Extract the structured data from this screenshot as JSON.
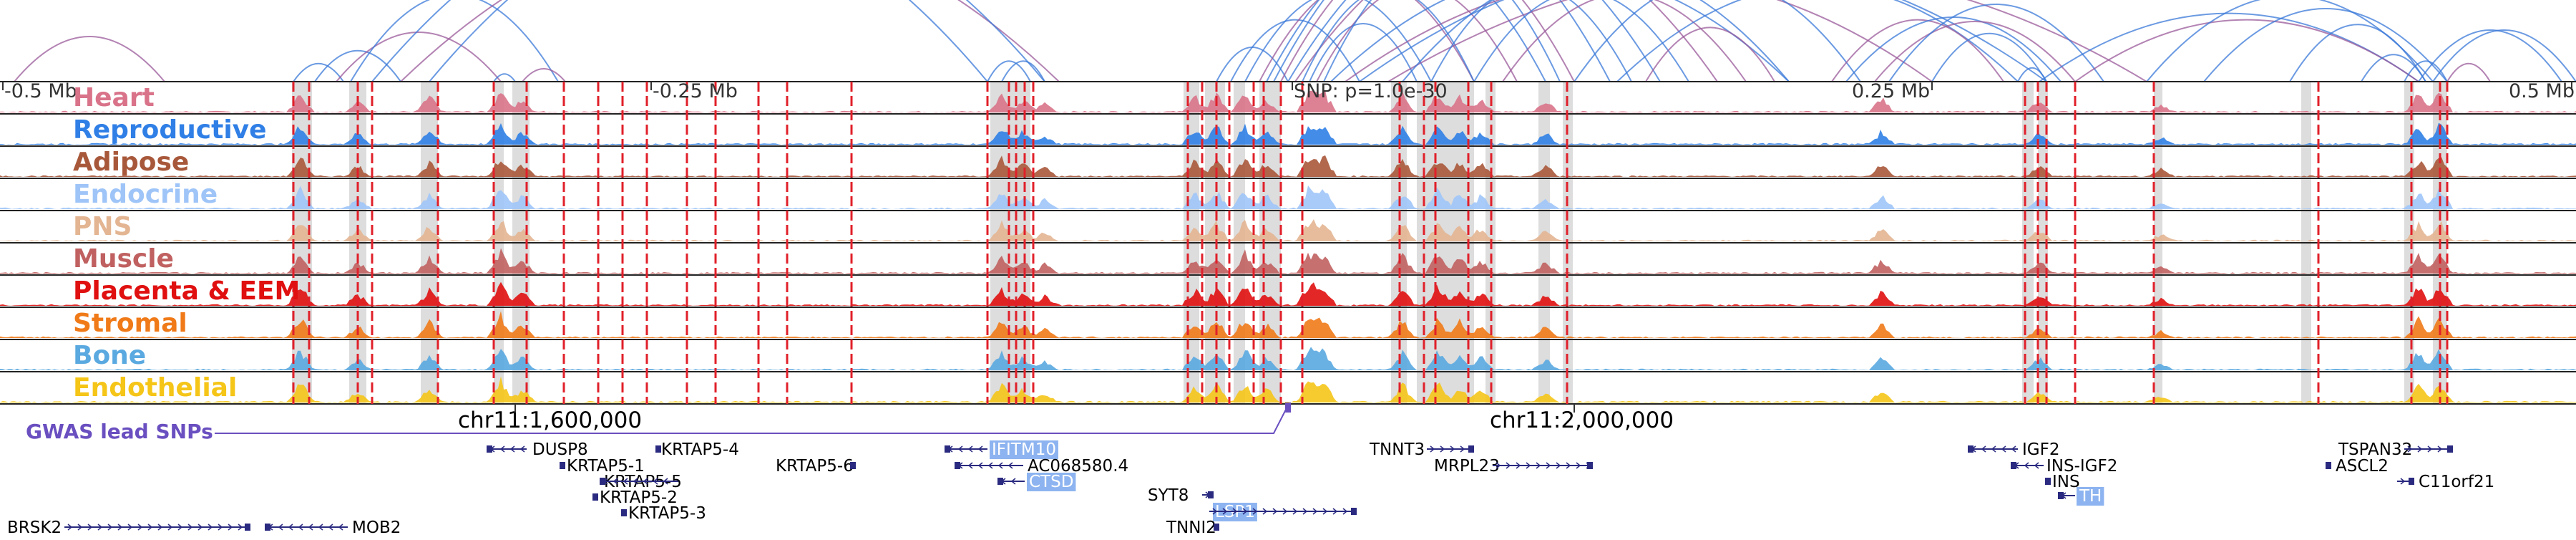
{
  "axis": {
    "left_label": "-0.5 Mb",
    "mid_left_label": "-0.25 Mb",
    "snp_label": "SNP: p=1.0e-30",
    "mid_right_label": "0.25 Mb",
    "right_label": "0.5 Mb",
    "coord_left": "chr11:1,600,000",
    "coord_right": "chr11:2,000,000"
  },
  "tracks": [
    {
      "name": "Heart",
      "color": "#d9738a"
    },
    {
      "name": "Reproductive",
      "color": "#2f7fe6"
    },
    {
      "name": "Adipose",
      "color": "#a8583a"
    },
    {
      "name": "Endocrine",
      "color": "#9fc5f8"
    },
    {
      "name": "PNS",
      "color": "#e3b592"
    },
    {
      "name": "Muscle",
      "color": "#c06060"
    },
    {
      "name": "Placenta & EEM",
      "color": "#e01010"
    },
    {
      "name": "Stromal",
      "color": "#f07a18"
    },
    {
      "name": "Bone",
      "color": "#5aa9e0"
    },
    {
      "name": "Endothelial",
      "color": "#f5c518"
    }
  ],
  "gwas_label": "GWAS lead SNPs",
  "genes": [
    {
      "label": "DUSP8"
    },
    {
      "label": "KRTAP5-4"
    },
    {
      "label": "KRTAP5-1"
    },
    {
      "label": "KRTAP5-5"
    },
    {
      "label": "KRTAP5-2"
    },
    {
      "label": "KRTAP5-3"
    },
    {
      "label": "KRTAP5-6"
    },
    {
      "label": "IFITM10"
    },
    {
      "label": "AC068580.4"
    },
    {
      "label": "CTSD"
    },
    {
      "label": "SYT8"
    },
    {
      "label": "LSP1"
    },
    {
      "label": "TNNI2"
    },
    {
      "label": "TNNT3"
    },
    {
      "label": "MRPL23"
    },
    {
      "label": "IGF2"
    },
    {
      "label": "INS-IGF2"
    },
    {
      "label": "INS"
    },
    {
      "label": "TH"
    },
    {
      "label": "TSPAN32"
    },
    {
      "label": "ASCL2"
    },
    {
      "label": "C11orf21"
    },
    {
      "label": "BRSK2"
    },
    {
      "label": "MOB2"
    }
  ],
  "colors": {
    "arc_blue": "#3a78d8",
    "arc_purple": "#9a5a9a",
    "arc_pink": "#d98a9a",
    "snp_red": "#e0202a",
    "highlight": "#d4d4d4",
    "gene_text": "#000000",
    "gene_box": "#2a2a80",
    "gene_highlight": "#8db4f0",
    "gwas": "#6a4fc0"
  }
}
